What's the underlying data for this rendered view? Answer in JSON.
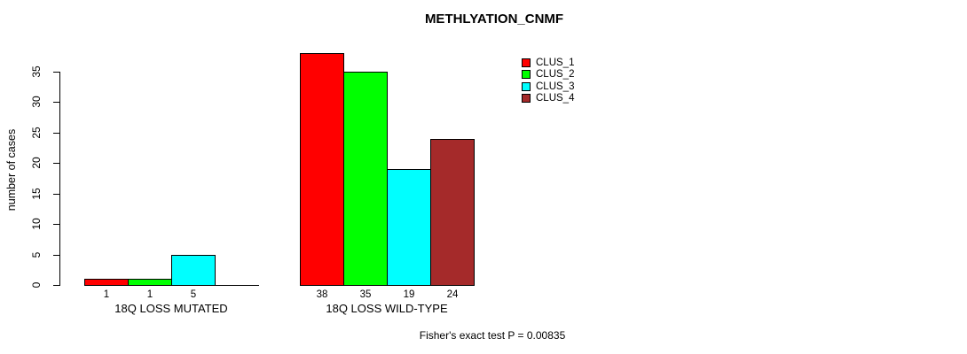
{
  "chart_data": {
    "type": "bar",
    "title": "METHLYATION_CNMF",
    "ylabel": "number of cases",
    "xlabel": "",
    "groups": [
      "18Q LOSS MUTATED",
      "18Q LOSS WILD-TYPE"
    ],
    "series": [
      {
        "name": "CLUS_1",
        "color": "#ff0000",
        "values": [
          1,
          38
        ]
      },
      {
        "name": "CLUS_2",
        "color": "#00ff00",
        "values": [
          1,
          35
        ]
      },
      {
        "name": "CLUS_3",
        "color": "#00ffff",
        "values": [
          5,
          19
        ]
      },
      {
        "name": "CLUS_4",
        "color": "#a52a2a",
        "values": [
          0,
          24
        ]
      }
    ],
    "bar_value_labels": [
      [
        "1",
        "1",
        "5",
        ""
      ],
      [
        "38",
        "35",
        "19",
        "24"
      ]
    ],
    "y_ticks": [
      0,
      5,
      10,
      15,
      20,
      25,
      30,
      35
    ],
    "ylim": [
      0,
      38
    ],
    "grid": false,
    "legend": {
      "position": "top-right",
      "entries": [
        "CLUS_1",
        "CLUS_2",
        "CLUS_3",
        "CLUS_4"
      ]
    },
    "annotation": "Fisher's exact test P = 0.00835"
  },
  "colors": {
    "axis": "#000000",
    "text": "#000000",
    "background": "#ffffff"
  }
}
